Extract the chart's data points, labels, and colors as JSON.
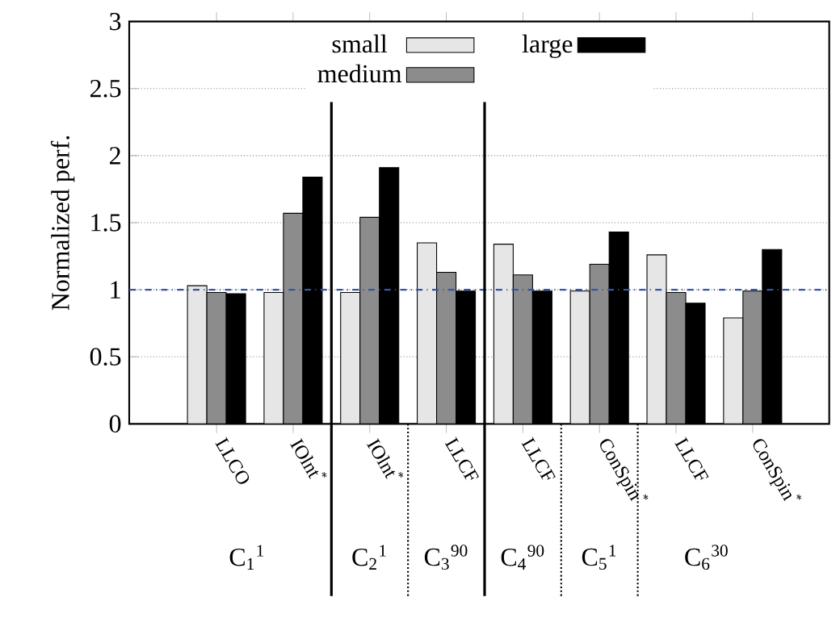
{
  "chart_data": {
    "type": "bar",
    "ylabel": "Normalized perf.",
    "categories": [
      "LLCO",
      "IOlnt$^{*}$",
      "IOlnt$^{*}$",
      "LLCF",
      "LLCF",
      "ConSpin$^{*}$",
      "LLCF",
      "ConSpin$^{*}$"
    ],
    "series": [
      {
        "name": "small",
        "color": "#e6e6e6",
        "values": [
          1.03,
          0.98,
          0.98,
          1.35,
          1.34,
          0.99,
          1.26,
          0.79
        ]
      },
      {
        "name": "medium",
        "color": "#8c8c8c",
        "values": [
          0.98,
          1.57,
          1.54,
          1.13,
          1.11,
          1.19,
          0.98,
          0.99
        ]
      },
      {
        "name": "large",
        "color": "#000000",
        "values": [
          0.97,
          1.84,
          1.91,
          0.99,
          0.99,
          1.43,
          0.9,
          1.3
        ]
      }
    ],
    "ylim": [
      0,
      3
    ],
    "yticks": [
      0,
      0.5,
      1,
      1.5,
      2,
      2.5,
      3
    ],
    "grid": "y",
    "legend": "top",
    "ref_lines": [
      {
        "axis": "y",
        "value": 1,
        "color": "#3355aa",
        "line_style": "dashdotted"
      }
    ],
    "annotations": [
      "C$_{1}$$^{1}$",
      "C$_{2}$$^{1}$",
      "C$_{3}$$^{90}$",
      "C$_{4}$$^{90}$",
      "C$_{5}$$^{1}$",
      "C$_{6}$$^{30}$"
    ]
  }
}
